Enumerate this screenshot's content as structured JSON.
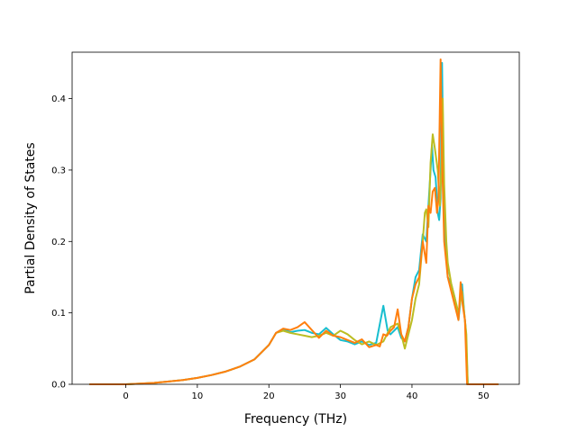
{
  "chart_data": {
    "type": "line",
    "title": "",
    "xlabel": "Frequency (THz)",
    "ylabel": "Partial Density of States",
    "xlim": [
      -7.5,
      55
    ],
    "ylim": [
      0,
      0.465
    ],
    "xticks": [
      0,
      10,
      20,
      30,
      40,
      50
    ],
    "yticks": [
      0.0,
      0.1,
      0.2,
      0.3,
      0.4
    ],
    "xtick_labels": [
      "0",
      "10",
      "20",
      "30",
      "40",
      "50"
    ],
    "ytick_labels": [
      "0.0",
      "0.1",
      "0.2",
      "0.3",
      "0.4"
    ],
    "grid": false,
    "legend": "none",
    "series": [
      {
        "color": "#17becf",
        "points": [
          [
            -5,
            0
          ],
          [
            0,
            0
          ],
          [
            2,
            0.001
          ],
          [
            4,
            0.002
          ],
          [
            6,
            0.004
          ],
          [
            8,
            0.006
          ],
          [
            10,
            0.009
          ],
          [
            12,
            0.013
          ],
          [
            14,
            0.018
          ],
          [
            16,
            0.025
          ],
          [
            18,
            0.035
          ],
          [
            20,
            0.055
          ],
          [
            21,
            0.072
          ],
          [
            22,
            0.077
          ],
          [
            23,
            0.073
          ],
          [
            24,
            0.075
          ],
          [
            25,
            0.076
          ],
          [
            26,
            0.072
          ],
          [
            27,
            0.07
          ],
          [
            28,
            0.079
          ],
          [
            29,
            0.07
          ],
          [
            30,
            0.062
          ],
          [
            31,
            0.06
          ],
          [
            32,
            0.056
          ],
          [
            33,
            0.06
          ],
          [
            34,
            0.055
          ],
          [
            35,
            0.058
          ],
          [
            36,
            0.11
          ],
          [
            36.6,
            0.075
          ],
          [
            37,
            0.07
          ],
          [
            38,
            0.08
          ],
          [
            38.5,
            0.065
          ],
          [
            39,
            0.06
          ],
          [
            39.5,
            0.08
          ],
          [
            40,
            0.12
          ],
          [
            40.5,
            0.15
          ],
          [
            41,
            0.16
          ],
          [
            41.5,
            0.21
          ],
          [
            42,
            0.2
          ],
          [
            42.3,
            0.25
          ],
          [
            42.6,
            0.3
          ],
          [
            42.8,
            0.335
          ],
          [
            43,
            0.3
          ],
          [
            43.3,
            0.29
          ],
          [
            43.6,
            0.24
          ],
          [
            43.8,
            0.23
          ],
          [
            44,
            0.26
          ],
          [
            44.2,
            0.45
          ],
          [
            44.4,
            0.3
          ],
          [
            44.6,
            0.22
          ],
          [
            45,
            0.15
          ],
          [
            45.5,
            0.14
          ],
          [
            46,
            0.12
          ],
          [
            46.5,
            0.09
          ],
          [
            47,
            0.14
          ],
          [
            47.3,
            0.1
          ],
          [
            47.5,
            0.08
          ],
          [
            47.8,
            0
          ],
          [
            52,
            0
          ]
        ]
      },
      {
        "color": "#bcbd22",
        "points": [
          [
            -5,
            0
          ],
          [
            0,
            0
          ],
          [
            2,
            0.001
          ],
          [
            4,
            0.002
          ],
          [
            6,
            0.004
          ],
          [
            8,
            0.006
          ],
          [
            10,
            0.009
          ],
          [
            12,
            0.013
          ],
          [
            14,
            0.018
          ],
          [
            16,
            0.025
          ],
          [
            18,
            0.035
          ],
          [
            20,
            0.055
          ],
          [
            21,
            0.072
          ],
          [
            22,
            0.075
          ],
          [
            23,
            0.072
          ],
          [
            24,
            0.07
          ],
          [
            25,
            0.068
          ],
          [
            26,
            0.066
          ],
          [
            27,
            0.068
          ],
          [
            28,
            0.072
          ],
          [
            29,
            0.068
          ],
          [
            30,
            0.075
          ],
          [
            31,
            0.07
          ],
          [
            32,
            0.062
          ],
          [
            33,
            0.056
          ],
          [
            34,
            0.06
          ],
          [
            35,
            0.055
          ],
          [
            36,
            0.06
          ],
          [
            37,
            0.08
          ],
          [
            38,
            0.085
          ],
          [
            38.5,
            0.07
          ],
          [
            39,
            0.05
          ],
          [
            39.5,
            0.07
          ],
          [
            40,
            0.09
          ],
          [
            40.5,
            0.12
          ],
          [
            41,
            0.14
          ],
          [
            41.5,
            0.2
          ],
          [
            41.8,
            0.24
          ],
          [
            42,
            0.245
          ],
          [
            42.3,
            0.22
          ],
          [
            42.6,
            0.31
          ],
          [
            42.9,
            0.35
          ],
          [
            43.2,
            0.33
          ],
          [
            43.6,
            0.3
          ],
          [
            43.9,
            0.25
          ],
          [
            44.1,
            0.3
          ],
          [
            44.3,
            0.4
          ],
          [
            44.5,
            0.28
          ],
          [
            44.8,
            0.2
          ],
          [
            45,
            0.17
          ],
          [
            45.5,
            0.14
          ],
          [
            46,
            0.12
          ],
          [
            46.5,
            0.1
          ],
          [
            47,
            0.13
          ],
          [
            47.3,
            0.1
          ],
          [
            47.6,
            0.07
          ],
          [
            47.8,
            0
          ],
          [
            52,
            0
          ]
        ]
      },
      {
        "color": "#ff7f0e",
        "points": [
          [
            -5,
            0
          ],
          [
            0,
            0
          ],
          [
            2,
            0.001
          ],
          [
            4,
            0.002
          ],
          [
            6,
            0.004
          ],
          [
            8,
            0.006
          ],
          [
            10,
            0.009
          ],
          [
            12,
            0.013
          ],
          [
            14,
            0.018
          ],
          [
            16,
            0.025
          ],
          [
            18,
            0.035
          ],
          [
            20,
            0.055
          ],
          [
            21,
            0.072
          ],
          [
            22,
            0.078
          ],
          [
            23,
            0.076
          ],
          [
            24,
            0.08
          ],
          [
            25,
            0.087
          ],
          [
            26,
            0.076
          ],
          [
            27,
            0.065
          ],
          [
            28,
            0.075
          ],
          [
            29,
            0.068
          ],
          [
            30,
            0.066
          ],
          [
            31,
            0.062
          ],
          [
            32,
            0.058
          ],
          [
            33,
            0.063
          ],
          [
            34,
            0.052
          ],
          [
            35,
            0.055
          ],
          [
            35.5,
            0.053
          ],
          [
            36,
            0.07
          ],
          [
            36.5,
            0.068
          ],
          [
            37,
            0.075
          ],
          [
            37.5,
            0.08
          ],
          [
            38,
            0.105
          ],
          [
            38.5,
            0.07
          ],
          [
            39,
            0.06
          ],
          [
            39.5,
            0.08
          ],
          [
            40,
            0.12
          ],
          [
            40.5,
            0.14
          ],
          [
            41,
            0.15
          ],
          [
            41.5,
            0.2
          ],
          [
            42,
            0.17
          ],
          [
            42.3,
            0.25
          ],
          [
            42.6,
            0.24
          ],
          [
            42.9,
            0.27
          ],
          [
            43.2,
            0.275
          ],
          [
            43.5,
            0.24
          ],
          [
            43.7,
            0.26
          ],
          [
            44,
            0.455
          ],
          [
            44.2,
            0.32
          ],
          [
            44.5,
            0.2
          ],
          [
            45,
            0.15
          ],
          [
            45.5,
            0.13
          ],
          [
            46,
            0.11
          ],
          [
            46.5,
            0.09
          ],
          [
            46.8,
            0.143
          ],
          [
            47.1,
            0.11
          ],
          [
            47.4,
            0.09
          ],
          [
            47.7,
            0
          ],
          [
            52,
            0
          ]
        ]
      }
    ]
  }
}
